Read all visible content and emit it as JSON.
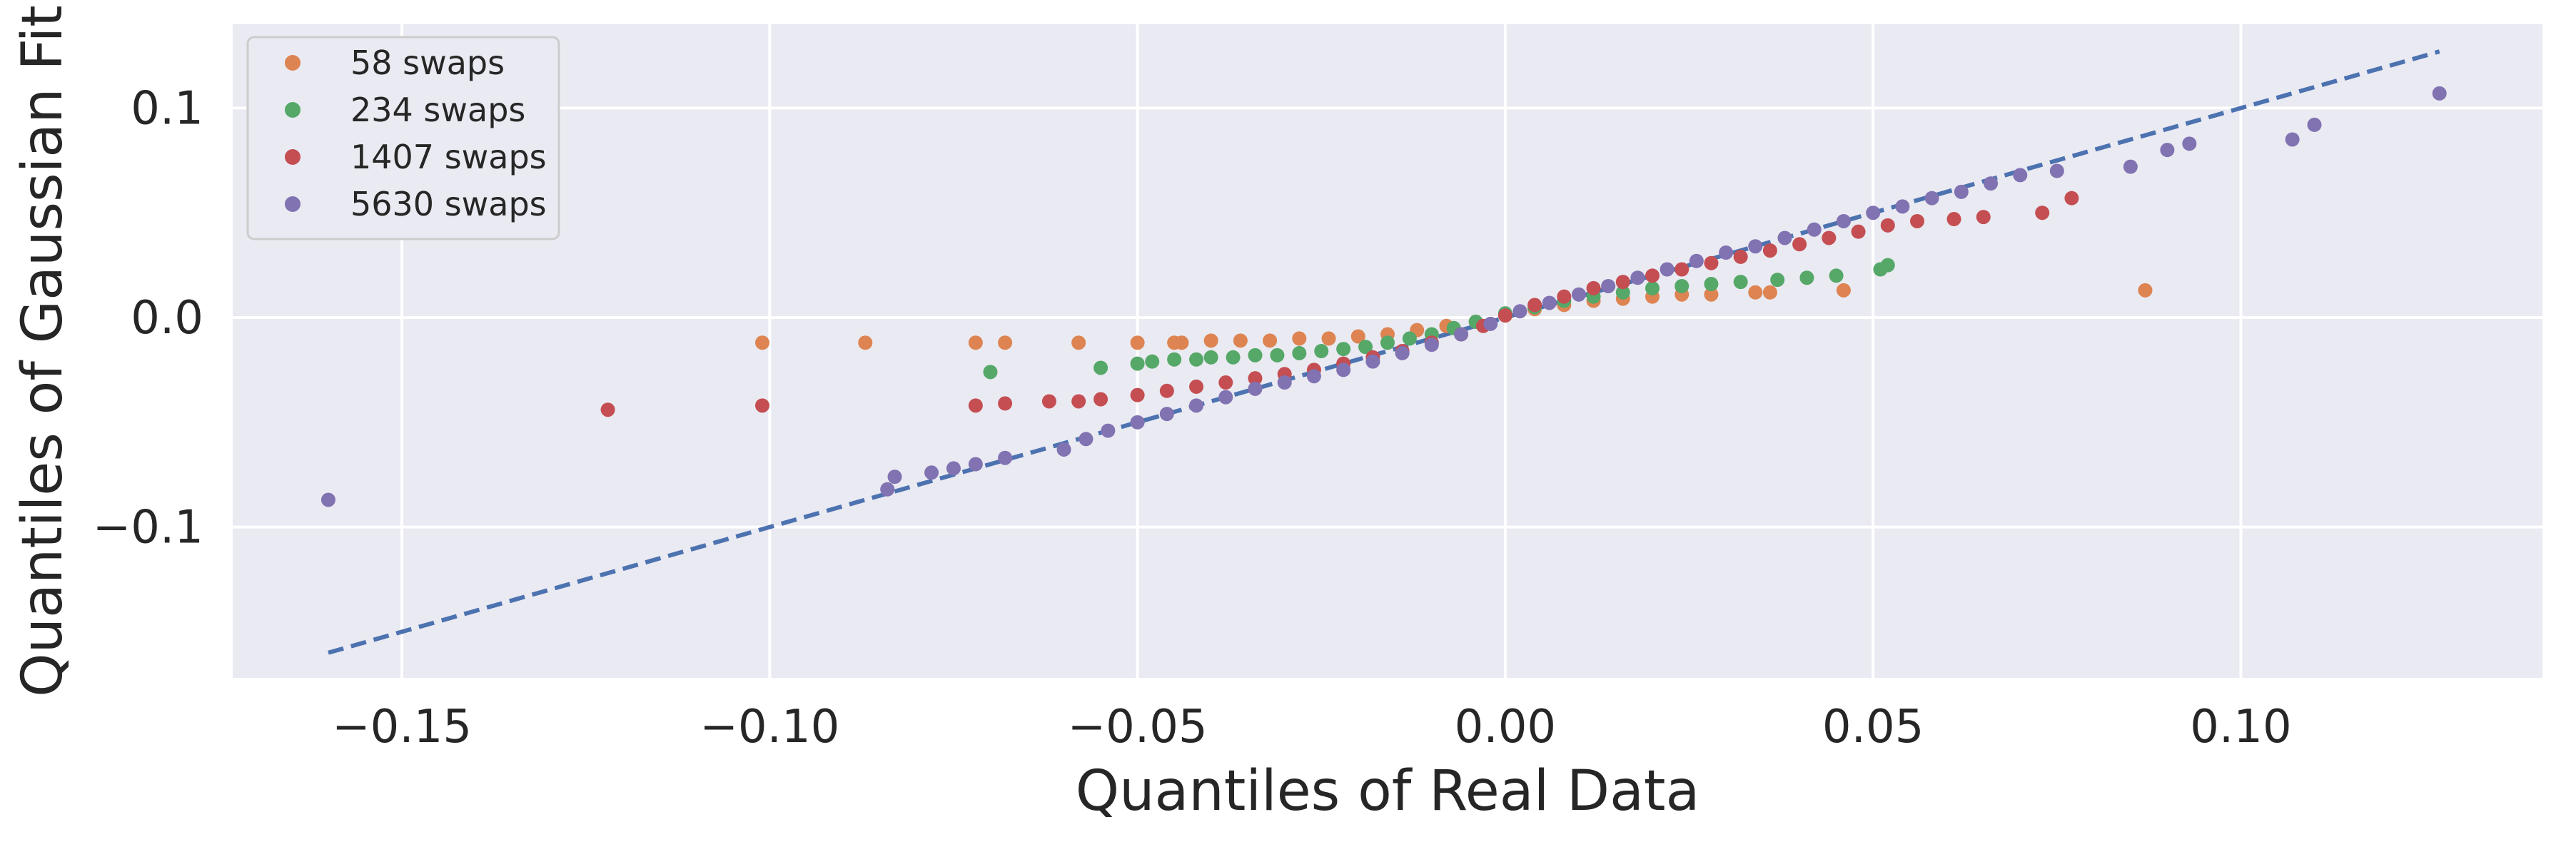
{
  "chart_data": {
    "type": "scatter",
    "title": "",
    "xlabel": "Quantiles of Real Data",
    "ylabel": "Quantiles of Gaussian Fit",
    "xlim": [
      -0.173,
      0.141
    ],
    "ylim": [
      -0.172,
      0.14
    ],
    "xticks": [
      -0.15,
      -0.1,
      -0.05,
      0.0,
      0.05,
      0.1
    ],
    "xtick_labels": [
      "−0.15",
      "−0.10",
      "−0.05",
      "0.00",
      "0.05",
      "0.10"
    ],
    "yticks": [
      -0.1,
      0.0,
      0.1
    ],
    "ytick_labels": [
      "−0.1",
      "0.0",
      "0.1"
    ],
    "grid": true,
    "legend_position": "top-left",
    "reference_line": {
      "x": [
        -0.16,
        0.127
      ],
      "y": [
        -0.16,
        0.127
      ],
      "style": "dashed",
      "color": "#4c72b0"
    },
    "series": [
      {
        "name": "58 swaps",
        "color": "#dd8452",
        "x": [
          -0.101,
          -0.087,
          -0.072,
          -0.068,
          -0.058,
          -0.05,
          -0.045,
          -0.044,
          -0.04,
          -0.036,
          -0.032,
          -0.028,
          -0.024,
          -0.02,
          -0.016,
          -0.012,
          -0.008,
          -0.004,
          0.0,
          0.004,
          0.008,
          0.012,
          0.016,
          0.02,
          0.024,
          0.028,
          0.034,
          0.036,
          0.046,
          0.087
        ],
        "y": [
          -0.012,
          -0.012,
          -0.012,
          -0.012,
          -0.012,
          -0.012,
          -0.012,
          -0.012,
          -0.011,
          -0.011,
          -0.011,
          -0.01,
          -0.01,
          -0.009,
          -0.008,
          -0.006,
          -0.004,
          -0.002,
          0.001,
          0.004,
          0.006,
          0.008,
          0.009,
          0.01,
          0.011,
          0.011,
          0.012,
          0.012,
          0.013,
          0.013
        ]
      },
      {
        "name": "234 swaps",
        "color": "#55a868",
        "x": [
          -0.07,
          -0.055,
          -0.05,
          -0.048,
          -0.045,
          -0.042,
          -0.04,
          -0.037,
          -0.034,
          -0.031,
          -0.028,
          -0.025,
          -0.022,
          -0.019,
          -0.016,
          -0.013,
          -0.01,
          -0.007,
          -0.004,
          0.0,
          0.004,
          0.008,
          0.012,
          0.016,
          0.02,
          0.024,
          0.028,
          0.032,
          0.037,
          0.041,
          0.045,
          0.051,
          0.052
        ],
        "y": [
          -0.026,
          -0.024,
          -0.022,
          -0.021,
          -0.02,
          -0.02,
          -0.019,
          -0.019,
          -0.018,
          -0.018,
          -0.017,
          -0.016,
          -0.015,
          -0.014,
          -0.012,
          -0.01,
          -0.008,
          -0.005,
          -0.002,
          0.002,
          0.005,
          0.008,
          0.01,
          0.012,
          0.014,
          0.015,
          0.016,
          0.017,
          0.018,
          0.019,
          0.02,
          0.023,
          0.025
        ]
      },
      {
        "name": "1407 swaps",
        "color": "#c44e52",
        "x": [
          -0.122,
          -0.101,
          -0.072,
          -0.068,
          -0.062,
          -0.058,
          -0.055,
          -0.05,
          -0.046,
          -0.042,
          -0.038,
          -0.034,
          -0.03,
          -0.026,
          -0.022,
          -0.018,
          -0.014,
          -0.01,
          -0.006,
          -0.003,
          0.0,
          0.004,
          0.008,
          0.012,
          0.016,
          0.02,
          0.024,
          0.028,
          0.032,
          0.036,
          0.04,
          0.044,
          0.048,
          0.052,
          0.056,
          0.061,
          0.065,
          0.073,
          0.077
        ],
        "y": [
          -0.044,
          -0.042,
          -0.042,
          -0.041,
          -0.04,
          -0.04,
          -0.039,
          -0.037,
          -0.035,
          -0.033,
          -0.031,
          -0.029,
          -0.027,
          -0.025,
          -0.022,
          -0.019,
          -0.016,
          -0.012,
          -0.008,
          -0.004,
          0.001,
          0.006,
          0.01,
          0.014,
          0.017,
          0.02,
          0.023,
          0.026,
          0.029,
          0.032,
          0.035,
          0.038,
          0.041,
          0.044,
          0.046,
          0.047,
          0.048,
          0.05,
          0.057
        ]
      },
      {
        "name": "5630 swaps",
        "color": "#8172b2",
        "x": [
          -0.16,
          -0.084,
          -0.083,
          -0.078,
          -0.075,
          -0.072,
          -0.068,
          -0.06,
          -0.057,
          -0.054,
          -0.05,
          -0.046,
          -0.042,
          -0.038,
          -0.034,
          -0.03,
          -0.026,
          -0.022,
          -0.018,
          -0.014,
          -0.01,
          -0.006,
          -0.002,
          0.002,
          0.006,
          0.01,
          0.014,
          0.018,
          0.022,
          0.026,
          0.03,
          0.034,
          0.038,
          0.042,
          0.046,
          0.05,
          0.054,
          0.058,
          0.062,
          0.066,
          0.07,
          0.075,
          0.085,
          0.09,
          0.093,
          0.107,
          0.11,
          0.127
        ],
        "y": [
          -0.087,
          -0.082,
          -0.076,
          -0.074,
          -0.072,
          -0.07,
          -0.067,
          -0.063,
          -0.058,
          -0.054,
          -0.05,
          -0.046,
          -0.042,
          -0.038,
          -0.034,
          -0.031,
          -0.028,
          -0.025,
          -0.021,
          -0.017,
          -0.013,
          -0.008,
          -0.003,
          0.003,
          0.007,
          0.011,
          0.015,
          0.019,
          0.023,
          0.027,
          0.031,
          0.034,
          0.038,
          0.042,
          0.046,
          0.05,
          0.053,
          0.057,
          0.06,
          0.064,
          0.068,
          0.07,
          0.072,
          0.08,
          0.083,
          0.085,
          0.092,
          0.107
        ]
      }
    ]
  }
}
